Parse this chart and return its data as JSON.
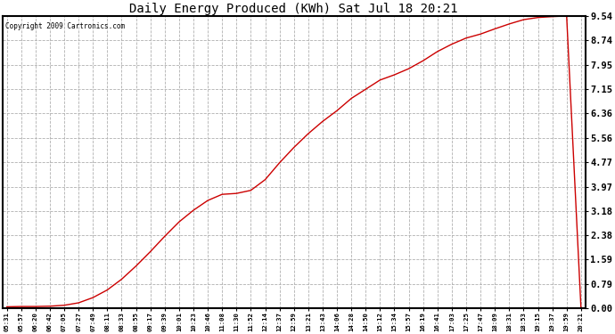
{
  "title": "Daily Energy Produced (KWh) Sat Jul 18 20:21",
  "copyright_text": "Copyright 2009 Cartronics.com",
  "line_color": "#cc0000",
  "background_color": "#ffffff",
  "plot_bg_color": "#ffffff",
  "grid_color": "#b0b0b0",
  "yticks": [
    0.0,
    0.79,
    1.59,
    2.38,
    3.18,
    3.97,
    4.77,
    5.56,
    6.36,
    7.15,
    7.95,
    8.74,
    9.54
  ],
  "ylim": [
    0.0,
    9.54
  ],
  "x_labels": [
    "05:31",
    "05:57",
    "06:20",
    "06:42",
    "07:05",
    "07:27",
    "07:49",
    "08:11",
    "08:33",
    "08:55",
    "09:17",
    "09:39",
    "10:01",
    "10:23",
    "10:46",
    "11:08",
    "11:30",
    "11:52",
    "12:14",
    "12:37",
    "12:59",
    "13:21",
    "13:43",
    "14:06",
    "14:28",
    "14:50",
    "15:12",
    "15:34",
    "15:57",
    "16:19",
    "16:41",
    "17:03",
    "17:25",
    "17:47",
    "18:09",
    "18:31",
    "18:53",
    "19:15",
    "19:37",
    "19:59",
    "20:21"
  ],
  "y_values": [
    0.05,
    0.06,
    0.06,
    0.07,
    0.1,
    0.18,
    0.35,
    0.6,
    0.95,
    1.38,
    1.85,
    2.35,
    2.82,
    3.2,
    3.52,
    3.72,
    3.75,
    3.85,
    4.2,
    4.75,
    5.25,
    5.7,
    6.1,
    6.45,
    6.85,
    7.15,
    7.45,
    7.62,
    7.82,
    8.08,
    8.38,
    8.62,
    8.82,
    8.95,
    9.12,
    9.28,
    9.42,
    9.49,
    9.52,
    9.54,
    0.0
  ]
}
